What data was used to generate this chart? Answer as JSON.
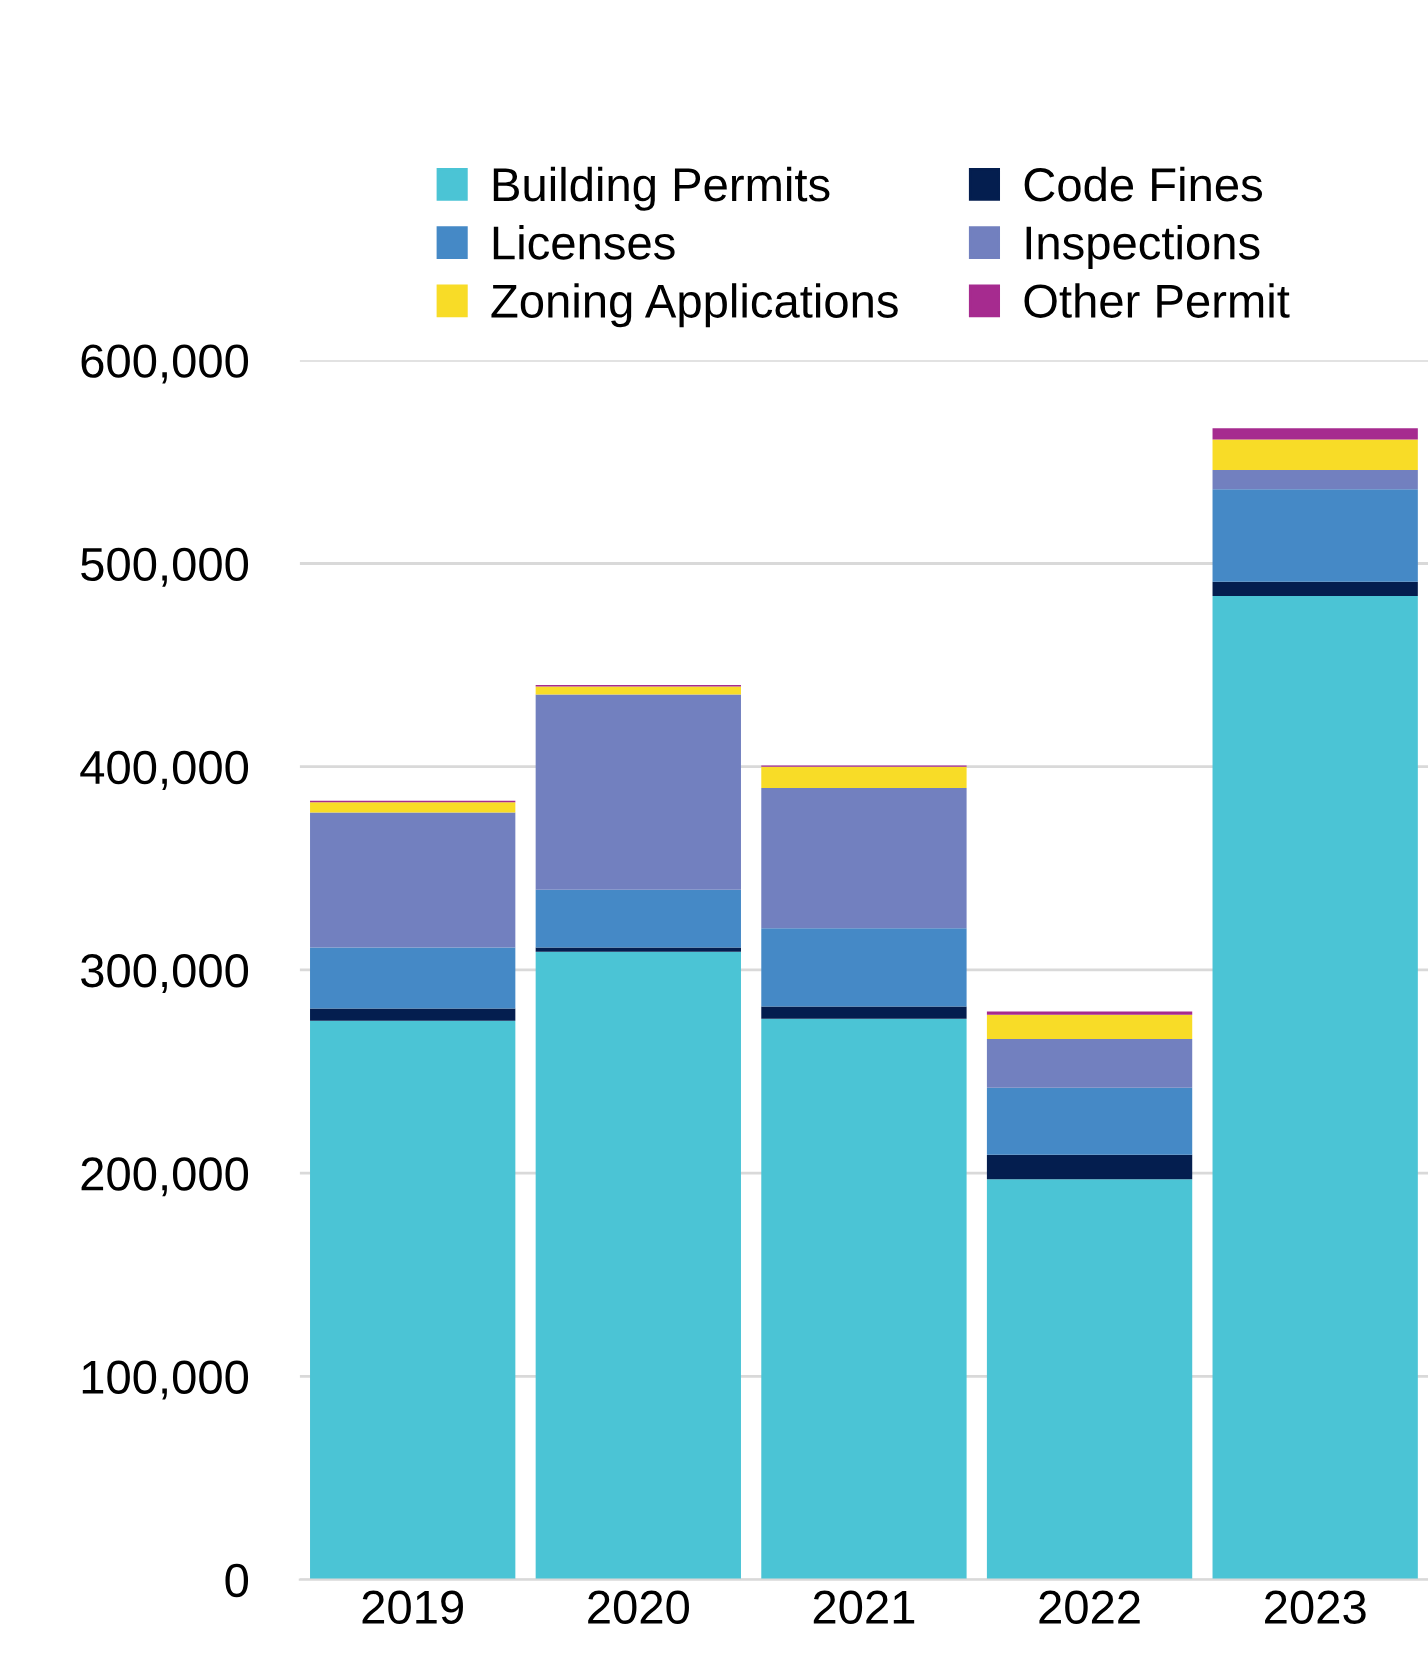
{
  "chart_data": {
    "type": "bar",
    "stacked": true,
    "categories": [
      "2019",
      "2020",
      "2021",
      "2022",
      "2023"
    ],
    "series": [
      {
        "name": "Building Permits",
        "color": "#4bc4d5",
        "values": [
          275000,
          309000,
          276000,
          197000,
          484000
        ]
      },
      {
        "name": "Code Fines",
        "color": "#041e4f",
        "values": [
          6000,
          2000,
          6000,
          12000,
          7000
        ]
      },
      {
        "name": "Licenses",
        "color": "#4589c6",
        "values": [
          30000,
          28500,
          38500,
          33000,
          45500
        ]
      },
      {
        "name": "Inspections",
        "color": "#7280bf",
        "values": [
          66500,
          96000,
          69000,
          24000,
          9500
        ]
      },
      {
        "name": "Zoning Applications",
        "color": "#f8dc27",
        "values": [
          5000,
          4000,
          10500,
          12000,
          15000
        ]
      },
      {
        "name": "Other Permit",
        "color": "#a62b8f",
        "values": [
          700,
          700,
          600,
          1500,
          5500
        ]
      }
    ],
    "ylim": [
      0,
      600000
    ],
    "yticks": [
      {
        "value": 0,
        "label": "0"
      },
      {
        "value": 100000,
        "label": "100,000"
      },
      {
        "value": 200000,
        "label": "200,000"
      },
      {
        "value": 300000,
        "label": "300,000"
      },
      {
        "value": 400000,
        "label": "400,000"
      },
      {
        "value": 500000,
        "label": "500,000"
      },
      {
        "value": 600000,
        "label": "600,000"
      }
    ],
    "grid": "y",
    "legend": "top"
  }
}
